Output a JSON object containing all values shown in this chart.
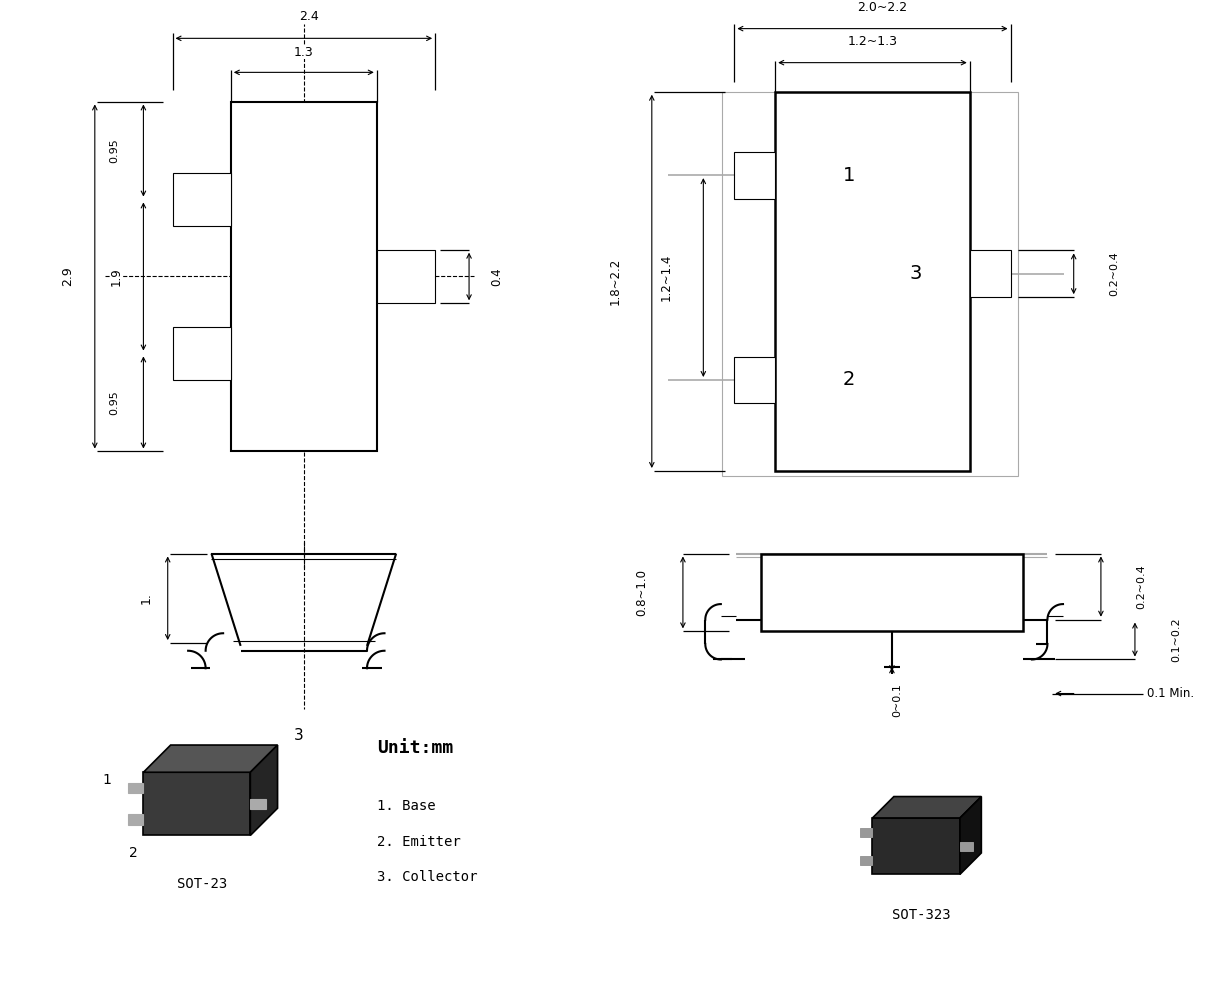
{
  "bg_color": "#ffffff",
  "line_color": "#000000",
  "gray_color": "#aaaaaa",
  "unit_text": "Unit:mm",
  "labels": {
    "sot23": "SOT-23",
    "sot323": "SOT-323",
    "base": "1. Base",
    "emitter": "2. Emitter",
    "collector": "3. Collector"
  },
  "dims_left": {
    "w24": "2.4",
    "w13": "1.3",
    "h29": "2.9",
    "h19": "1.9",
    "h095a": "0.95",
    "h095b": "0.95",
    "h04": "0.4",
    "h1": "1."
  },
  "dims_right": {
    "w20_22": "2.0~2.2",
    "w12_13": "1.2~1.3",
    "h18_22": "1.8~2.2",
    "h12_14": "1.2~1.4",
    "h02_04": "0.2~0.4",
    "h01_02": "0.1~0.2",
    "h08_10": "0.8~1.0",
    "h0_01": "0~0.1",
    "h01min": "0.1 Min."
  }
}
